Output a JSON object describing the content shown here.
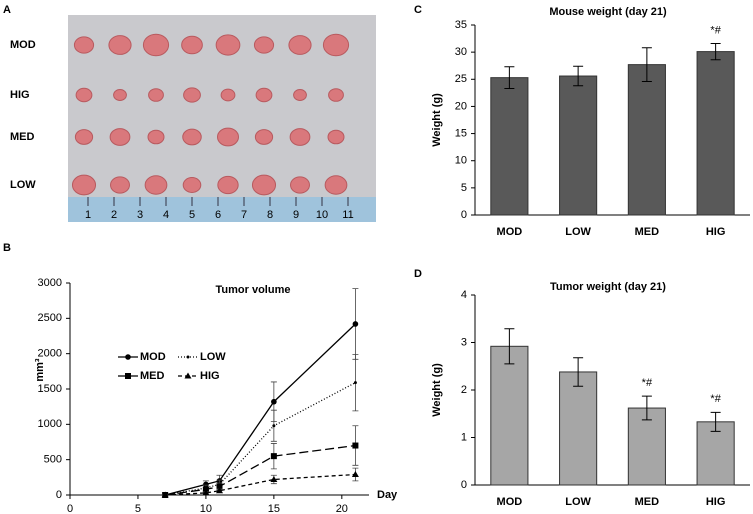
{
  "photo": {
    "panel_label": "A",
    "rows": [
      "MOD",
      "HIG",
      "MED",
      "LOW"
    ],
    "ruler_labels": [
      "1",
      "2",
      "3",
      "4",
      "5",
      "6",
      "7",
      "8",
      "9",
      "10",
      "11"
    ]
  },
  "chart_data": [
    {
      "type": "line",
      "panel_label": "B",
      "title": "Tumor volume",
      "y_label": "mm³",
      "x_label": "Day",
      "x": [
        7,
        10,
        11,
        15,
        21
      ],
      "series": [
        {
          "name": "MOD",
          "color": "#000000",
          "dash": "none",
          "marker": "circle",
          "values": [
            0,
            150,
            200,
            1320,
            2420
          ],
          "errors": [
            0,
            50,
            80,
            280,
            500
          ]
        },
        {
          "name": "LOW",
          "color": "#000000",
          "dash": "1,2",
          "marker": "dot",
          "values": [
            0,
            100,
            150,
            980,
            1590
          ],
          "errors": [
            0,
            40,
            60,
            220,
            400
          ]
        },
        {
          "name": "MED",
          "color": "#000000",
          "dash": "9,4",
          "marker": "square",
          "values": [
            0,
            80,
            120,
            550,
            700
          ],
          "errors": [
            0,
            30,
            50,
            180,
            280
          ]
        },
        {
          "name": "HIG",
          "color": "#000000",
          "dash": "4,3",
          "marker": "triangle",
          "values": [
            0,
            30,
            60,
            220,
            290
          ],
          "errors": [
            0,
            15,
            25,
            60,
            90
          ]
        }
      ],
      "xlim": [
        0,
        22
      ],
      "xticks": [
        0,
        5,
        10,
        15,
        20
      ],
      "ylim": [
        0,
        3000
      ],
      "yticks": [
        0,
        500,
        1000,
        1500,
        2000,
        2500,
        3000
      ]
    },
    {
      "type": "bar",
      "panel_label": "C",
      "title": "Mouse weight (day 21)",
      "y_label": "Weight (g)",
      "categories": [
        "MOD",
        "LOW",
        "MED",
        "HIG"
      ],
      "values": [
        25.3,
        25.6,
        27.7,
        30.1
      ],
      "errors": [
        2.0,
        1.8,
        3.1,
        1.5
      ],
      "value_annotations": [
        null,
        null,
        null,
        "*#"
      ],
      "color": "#595959",
      "ylim": [
        0,
        35
      ],
      "yticks": [
        0,
        5,
        10,
        15,
        20,
        25,
        30,
        35
      ]
    },
    {
      "type": "bar",
      "panel_label": "D",
      "title": "Tumor weight (day 21)",
      "y_label": "Weight (g)",
      "categories": [
        "MOD",
        "LOW",
        "MED",
        "HIG"
      ],
      "values": [
        2.92,
        2.38,
        1.62,
        1.33
      ],
      "errors": [
        0.37,
        0.3,
        0.25,
        0.2
      ],
      "value_annotations": [
        null,
        null,
        "*#",
        "*#"
      ],
      "color": "#a6a6a6",
      "ylim": [
        0,
        4
      ],
      "yticks": [
        0,
        1,
        2,
        3,
        4
      ]
    }
  ]
}
